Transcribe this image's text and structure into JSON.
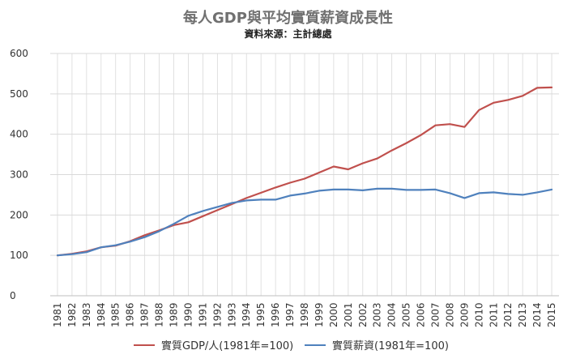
{
  "title": "每人GDP與平均實質薪資成長性",
  "subtitle": "資料來源：主計總處",
  "colors": {
    "gdp": "#c0504d",
    "wage": "#4f81bd",
    "grid": "#d9d9d9",
    "axis_text": "#333333"
  },
  "chart_data": {
    "type": "line",
    "title": "每人GDP與平均實質薪資成長性",
    "subtitle": "資料來源：主計總處",
    "xlabel": "",
    "ylabel": "",
    "ylim": [
      0,
      600
    ],
    "yticks": [
      0,
      100,
      200,
      300,
      400,
      500,
      600
    ],
    "grid": "vertical and horizontal",
    "legend_position": "bottom",
    "categories": [
      "1981",
      "1982",
      "1983",
      "1984",
      "1985",
      "1986",
      "1987",
      "1988",
      "1989",
      "1990",
      "1991",
      "1992",
      "1993",
      "1994",
      "1995",
      "1996",
      "1997",
      "1998",
      "1999",
      "2000",
      "2001",
      "2002",
      "2003",
      "2004",
      "2005",
      "2006",
      "2007",
      "2008",
      "2009",
      "2010",
      "2011",
      "2012",
      "2013",
      "2014",
      "2015"
    ],
    "series": [
      {
        "name": "實質GDP/人(1981年=100)",
        "color": "#c0504d",
        "values": [
          100,
          104,
          110,
          120,
          124,
          135,
          150,
          162,
          175,
          182,
          197,
          212,
          227,
          242,
          255,
          268,
          280,
          290,
          305,
          320,
          313,
          328,
          340,
          360,
          378,
          398,
          422,
          425,
          418,
          460,
          478,
          485,
          495,
          515,
          516
        ]
      },
      {
        "name": "實質薪資(1981年=100)",
        "color": "#4f81bd",
        "values": [
          100,
          103,
          108,
          120,
          125,
          134,
          145,
          160,
          178,
          198,
          210,
          220,
          230,
          236,
          238,
          238,
          248,
          253,
          260,
          263,
          263,
          261,
          265,
          265,
          262,
          262,
          263,
          254,
          242,
          254,
          256,
          252,
          250,
          256,
          263
        ]
      }
    ]
  }
}
